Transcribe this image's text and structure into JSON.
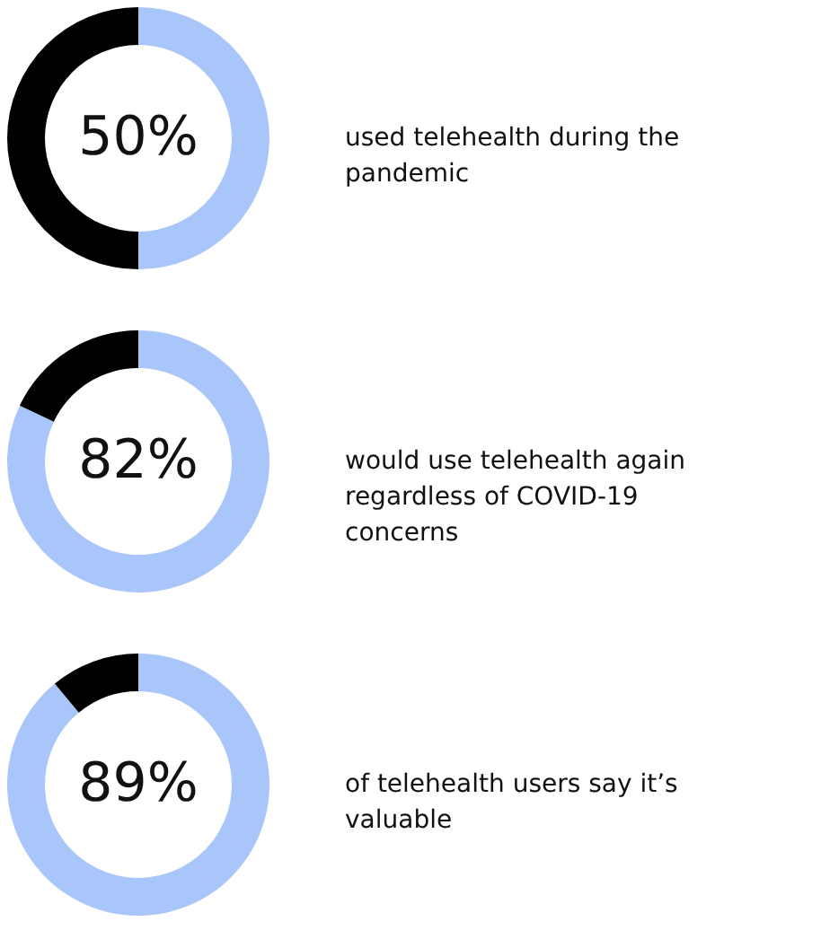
{
  "chart_data": [
    {
      "type": "donut",
      "categories": [
        null,
        null
      ],
      "values": [
        50,
        50
      ],
      "colors": [
        "#a8c6fa",
        "#000000"
      ],
      "value_labels": [
        "50%",
        null
      ],
      "annotations": [
        "used telehealth during the pandemic"
      ]
    },
    {
      "type": "donut",
      "categories": [
        null,
        null
      ],
      "values": [
        82,
        18
      ],
      "colors": [
        "#a8c6fa",
        "#000000"
      ],
      "value_labels": [
        "82%",
        null
      ],
      "annotations": [
        "would use telehealth again regardless of COVID-19 concerns"
      ]
    },
    {
      "type": "donut",
      "categories": [
        null,
        null
      ],
      "values": [
        89,
        11
      ],
      "colors": [
        "#a8c6fa",
        "#000000"
      ],
      "value_labels": [
        "89%",
        null
      ],
      "annotations": [
        "of telehealth users say it’s valuable"
      ]
    }
  ]
}
